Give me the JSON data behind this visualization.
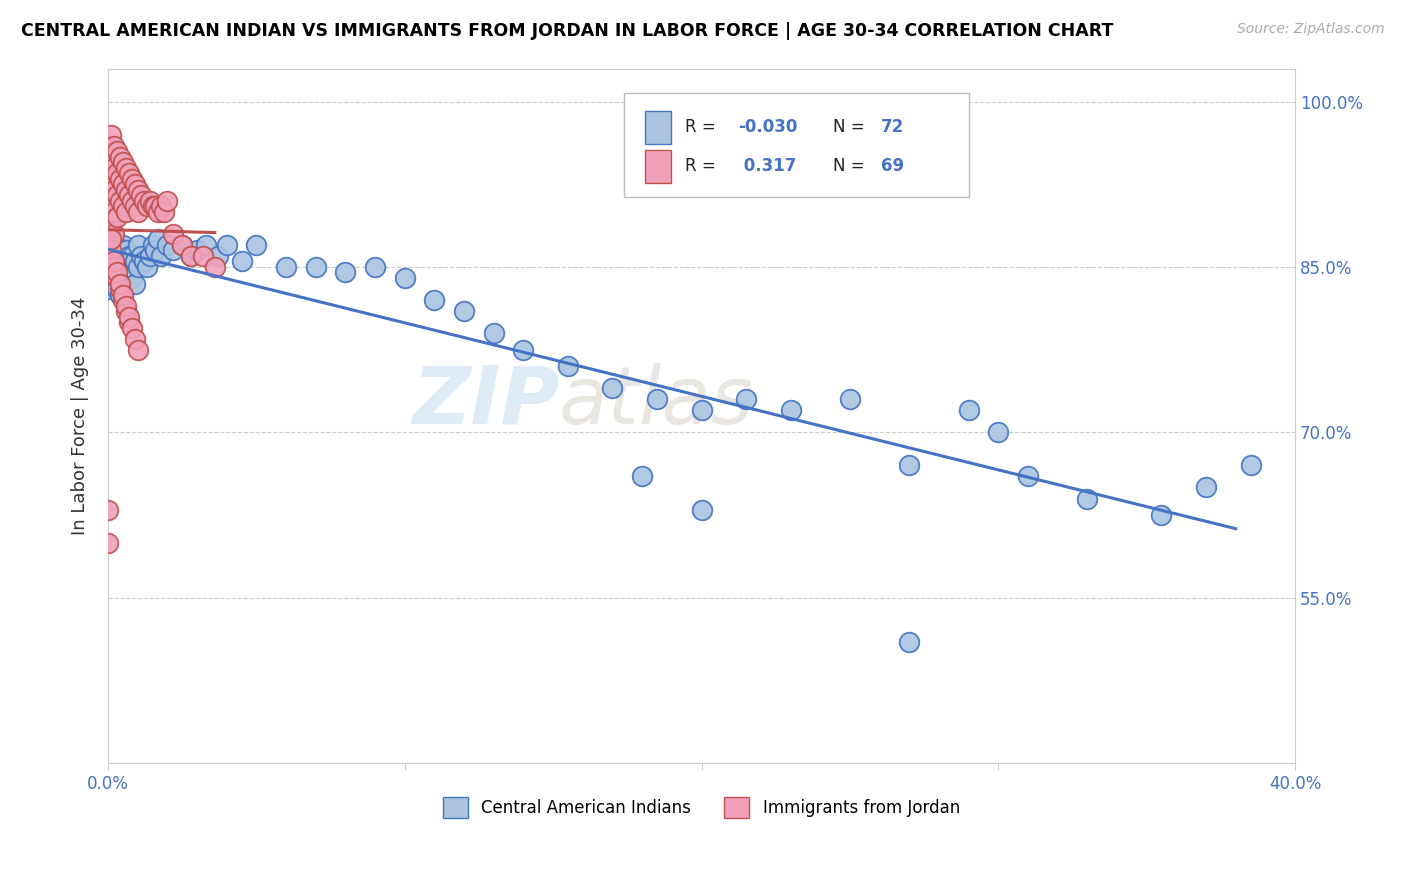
{
  "title": "CENTRAL AMERICAN INDIAN VS IMMIGRANTS FROM JORDAN IN LABOR FORCE | AGE 30-34 CORRELATION CHART",
  "source": "Source: ZipAtlas.com",
  "ylabel": "In Labor Force | Age 30-34",
  "xlim": [
    0.0,
    0.4
  ],
  "ylim": [
    0.4,
    1.03
  ],
  "color_blue": "#aac4e0",
  "color_pink": "#f0a0b8",
  "line_blue": "#4472c4",
  "line_pink": "#c0504d",
  "watermark_zip": "ZIP",
  "watermark_atlas": "atlas",
  "blue_scatter_x": [
    0.0,
    0.0,
    0.0,
    0.001,
    0.001,
    0.001,
    0.002,
    0.002,
    0.002,
    0.003,
    0.003,
    0.003,
    0.004,
    0.004,
    0.004,
    0.005,
    0.005,
    0.006,
    0.006,
    0.007,
    0.007,
    0.008,
    0.008,
    0.009,
    0.009,
    0.01,
    0.01,
    0.011,
    0.012,
    0.013,
    0.014,
    0.015,
    0.016,
    0.017,
    0.018,
    0.02,
    0.022,
    0.025,
    0.028,
    0.03,
    0.033,
    0.037,
    0.04,
    0.045,
    0.05,
    0.06,
    0.07,
    0.08,
    0.09,
    0.1,
    0.11,
    0.12,
    0.13,
    0.14,
    0.155,
    0.17,
    0.185,
    0.2,
    0.215,
    0.23,
    0.25,
    0.27,
    0.29,
    0.31,
    0.33,
    0.355,
    0.37,
    0.385,
    0.27,
    0.3,
    0.18,
    0.2
  ],
  "blue_scatter_y": [
    0.87,
    0.85,
    0.83,
    0.88,
    0.86,
    0.84,
    0.875,
    0.855,
    0.835,
    0.87,
    0.85,
    0.83,
    0.865,
    0.845,
    0.825,
    0.87,
    0.85,
    0.865,
    0.845,
    0.86,
    0.84,
    0.86,
    0.84,
    0.855,
    0.835,
    0.87,
    0.85,
    0.86,
    0.855,
    0.85,
    0.86,
    0.87,
    0.865,
    0.875,
    0.86,
    0.87,
    0.865,
    0.87,
    0.86,
    0.865,
    0.87,
    0.86,
    0.87,
    0.855,
    0.87,
    0.85,
    0.85,
    0.845,
    0.85,
    0.84,
    0.82,
    0.81,
    0.79,
    0.775,
    0.76,
    0.74,
    0.73,
    0.72,
    0.73,
    0.72,
    0.73,
    0.67,
    0.72,
    0.66,
    0.64,
    0.625,
    0.65,
    0.67,
    0.51,
    0.7,
    0.66,
    0.63
  ],
  "pink_scatter_x": [
    0.0,
    0.0,
    0.0,
    0.0,
    0.001,
    0.001,
    0.001,
    0.001,
    0.001,
    0.002,
    0.002,
    0.002,
    0.002,
    0.002,
    0.003,
    0.003,
    0.003,
    0.003,
    0.004,
    0.004,
    0.004,
    0.005,
    0.005,
    0.005,
    0.006,
    0.006,
    0.006,
    0.007,
    0.007,
    0.008,
    0.008,
    0.009,
    0.009,
    0.01,
    0.01,
    0.011,
    0.012,
    0.013,
    0.014,
    0.015,
    0.016,
    0.017,
    0.018,
    0.019,
    0.02,
    0.022,
    0.025,
    0.028,
    0.032,
    0.036,
    0.0,
    0.001,
    0.002,
    0.003,
    0.004,
    0.005,
    0.006,
    0.007,
    0.001,
    0.002,
    0.003,
    0.004,
    0.005,
    0.006,
    0.007,
    0.008,
    0.009,
    0.01,
    0.0
  ],
  "pink_scatter_y": [
    0.96,
    0.94,
    0.92,
    0.6,
    0.97,
    0.95,
    0.93,
    0.91,
    0.89,
    0.96,
    0.94,
    0.92,
    0.9,
    0.88,
    0.955,
    0.935,
    0.915,
    0.895,
    0.95,
    0.93,
    0.91,
    0.945,
    0.925,
    0.905,
    0.94,
    0.92,
    0.9,
    0.935,
    0.915,
    0.93,
    0.91,
    0.925,
    0.905,
    0.92,
    0.9,
    0.915,
    0.91,
    0.905,
    0.91,
    0.905,
    0.905,
    0.9,
    0.905,
    0.9,
    0.91,
    0.88,
    0.87,
    0.86,
    0.86,
    0.85,
    0.87,
    0.865,
    0.85,
    0.84,
    0.83,
    0.82,
    0.81,
    0.8,
    0.875,
    0.855,
    0.845,
    0.835,
    0.825,
    0.815,
    0.805,
    0.795,
    0.785,
    0.775,
    0.63
  ]
}
